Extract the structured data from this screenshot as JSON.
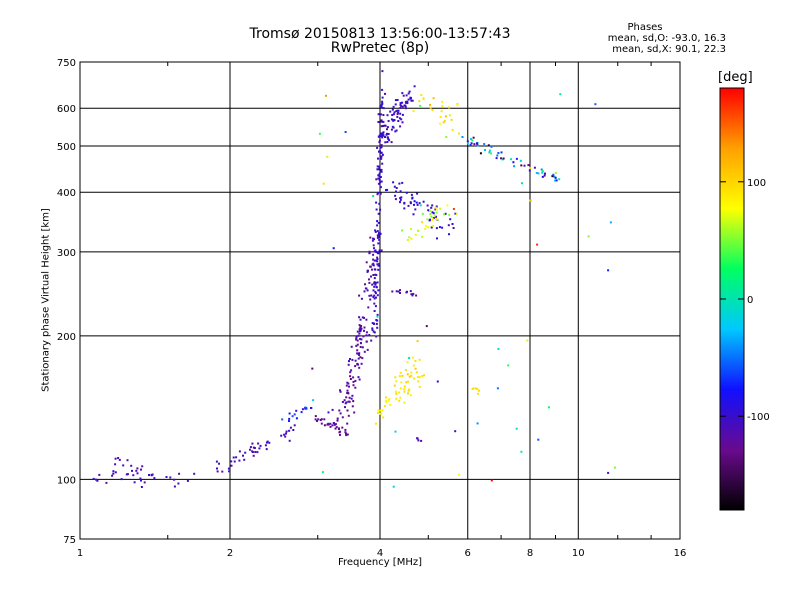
{
  "chart_data": {
    "type": "scatter",
    "title": "Tromsø 20150813 13:56:00-13:57:43",
    "subtitle": "RwPretec (8p)",
    "xlabel": "Frequency [MHz]",
    "ylabel": "Stationary phase Virtual Height [km]",
    "x_scale": "log",
    "y_scale": "log",
    "xlim": [
      1,
      16
    ],
    "ylim": [
      75,
      750
    ],
    "x_ticks": [
      1,
      2,
      4,
      6,
      8,
      10,
      16
    ],
    "y_ticks": [
      75,
      100,
      200,
      300,
      400,
      500,
      600,
      750
    ],
    "x_ticklabels": [
      "1",
      "2",
      "4",
      "6",
      "8",
      "10",
      "16"
    ],
    "y_ticklabels": [
      "75",
      "100",
      "200",
      "300",
      "400",
      "500",
      "600",
      "750"
    ],
    "grid": true,
    "colorbar": {
      "label": "[deg]",
      "range": [
        -180,
        180
      ],
      "ticks": [
        100,
        0,
        -100
      ],
      "ticklabels": [
        "100",
        "0",
        "-100"
      ],
      "colors": [
        "#000000",
        "#6a0a8e",
        "#1010ff",
        "#00c8ff",
        "#00ff60",
        "#ffff00",
        "#ffa000",
        "#ff0000"
      ]
    },
    "phases_legend": {
      "heading": "Phases",
      "o_mode": "mean, sd,O: -93.0, 16.3",
      "x_mode": "mean, sd,X:  90.1, 22.3"
    },
    "point_groups": [
      {
        "kind": "curve",
        "from": [
          1.05,
          100
        ],
        "to": [
          1.7,
          101
        ],
        "n": 34,
        "jitter": [
          0.02,
          0.025
        ],
        "phase": [
          -108,
          10
        ]
      },
      {
        "kind": "curve",
        "from": [
          1.18,
          109
        ],
        "to": [
          1.35,
          105
        ],
        "n": 10,
        "jitter": [
          0.02,
          0.02
        ],
        "phase": [
          -110,
          8
        ]
      },
      {
        "kind": "curve",
        "from": [
          1.85,
          104
        ],
        "to": [
          2.7,
          128
        ],
        "n": 45,
        "jitter": [
          0.015,
          0.025
        ],
        "phase": [
          -110,
          10
        ]
      },
      {
        "kind": "curve",
        "from": [
          2.5,
          133
        ],
        "to": [
          2.9,
          143
        ],
        "n": 16,
        "jitter": [
          0.02,
          0.02
        ],
        "phase": [
          -80,
          20
        ]
      },
      {
        "kind": "curve",
        "from": [
          2.95,
          135
        ],
        "to": [
          3.45,
          125
        ],
        "n": 28,
        "jitter": [
          0.01,
          0.012
        ],
        "phase": [
          -125,
          10
        ]
      },
      {
        "kind": "curve",
        "from": [
          3.3,
          130
        ],
        "to": [
          3.8,
          210
        ],
        "n": 80,
        "jitter": [
          0.03,
          0.04
        ],
        "phase": [
          -120,
          12
        ]
      },
      {
        "kind": "curve",
        "from": [
          3.55,
          175
        ],
        "to": [
          3.95,
          330
        ],
        "n": 70,
        "jitter": [
          0.02,
          0.05
        ],
        "phase": [
          -115,
          12
        ]
      },
      {
        "kind": "curve",
        "from": [
          3.9,
          210
        ],
        "to": [
          4.05,
          640
        ],
        "n": 140,
        "jitter": [
          0.01,
          0.09
        ],
        "phase": [
          -102,
          10
        ]
      },
      {
        "kind": "curve",
        "from": [
          4.05,
          520
        ],
        "to": [
          4.6,
          640
        ],
        "n": 80,
        "jitter": [
          0.025,
          0.04
        ],
        "phase": [
          -105,
          10
        ]
      },
      {
        "kind": "curve",
        "from": [
          4.2,
          410
        ],
        "to": [
          5.6,
          335
        ],
        "n": 60,
        "jitter": [
          0.03,
          0.04
        ],
        "phase": [
          -100,
          15
        ]
      },
      {
        "kind": "curve",
        "from": [
          4.5,
          320
        ],
        "to": [
          5.5,
          375
        ],
        "n": 30,
        "jitter": [
          0.03,
          0.04
        ],
        "phase": [
          70,
          25
        ]
      },
      {
        "kind": "curve",
        "from": [
          4.25,
          248
        ],
        "to": [
          4.7,
          244
        ],
        "n": 12,
        "jitter": [
          0.01,
          0.01
        ],
        "phase": [
          -115,
          5
        ]
      },
      {
        "kind": "curve",
        "from": [
          4.3,
          150
        ],
        "to": [
          4.8,
          175
        ],
        "n": 45,
        "jitter": [
          0.04,
          0.06
        ],
        "phase": [
          90,
          12
        ]
      },
      {
        "kind": "curve",
        "from": [
          3.9,
          133
        ],
        "to": [
          4.2,
          145
        ],
        "n": 14,
        "jitter": [
          0.02,
          0.03
        ],
        "phase": [
          85,
          10
        ]
      },
      {
        "kind": "curve",
        "from": [
          6.0,
          510
        ],
        "to": [
          9.2,
          425
        ],
        "n": 55,
        "jitter": [
          0.015,
          0.02
        ],
        "phase": [
          -60,
          90
        ]
      },
      {
        "kind": "curve",
        "from": [
          4.6,
          620
        ],
        "to": [
          5.8,
          560
        ],
        "n": 25,
        "jitter": [
          0.04,
          0.05
        ],
        "phase": [
          90,
          30
        ]
      },
      {
        "kind": "curve",
        "from": [
          6.2,
          155
        ],
        "to": [
          6.4,
          153
        ],
        "n": 6,
        "jitter": [
          0.01,
          0.01
        ],
        "phase": [
          90,
          5
        ]
      },
      {
        "kind": "curve",
        "from": [
          4.7,
          122
        ],
        "to": [
          4.9,
          120
        ],
        "n": 4,
        "jitter": [
          0.005,
          0.005
        ],
        "phase": [
          -110,
          5
        ]
      },
      {
        "kind": "scatter",
        "xlim": [
          2.8,
          14
        ],
        "ylim": [
          95,
          650
        ],
        "n": 45,
        "phase": [
          0,
          110
        ]
      }
    ]
  }
}
